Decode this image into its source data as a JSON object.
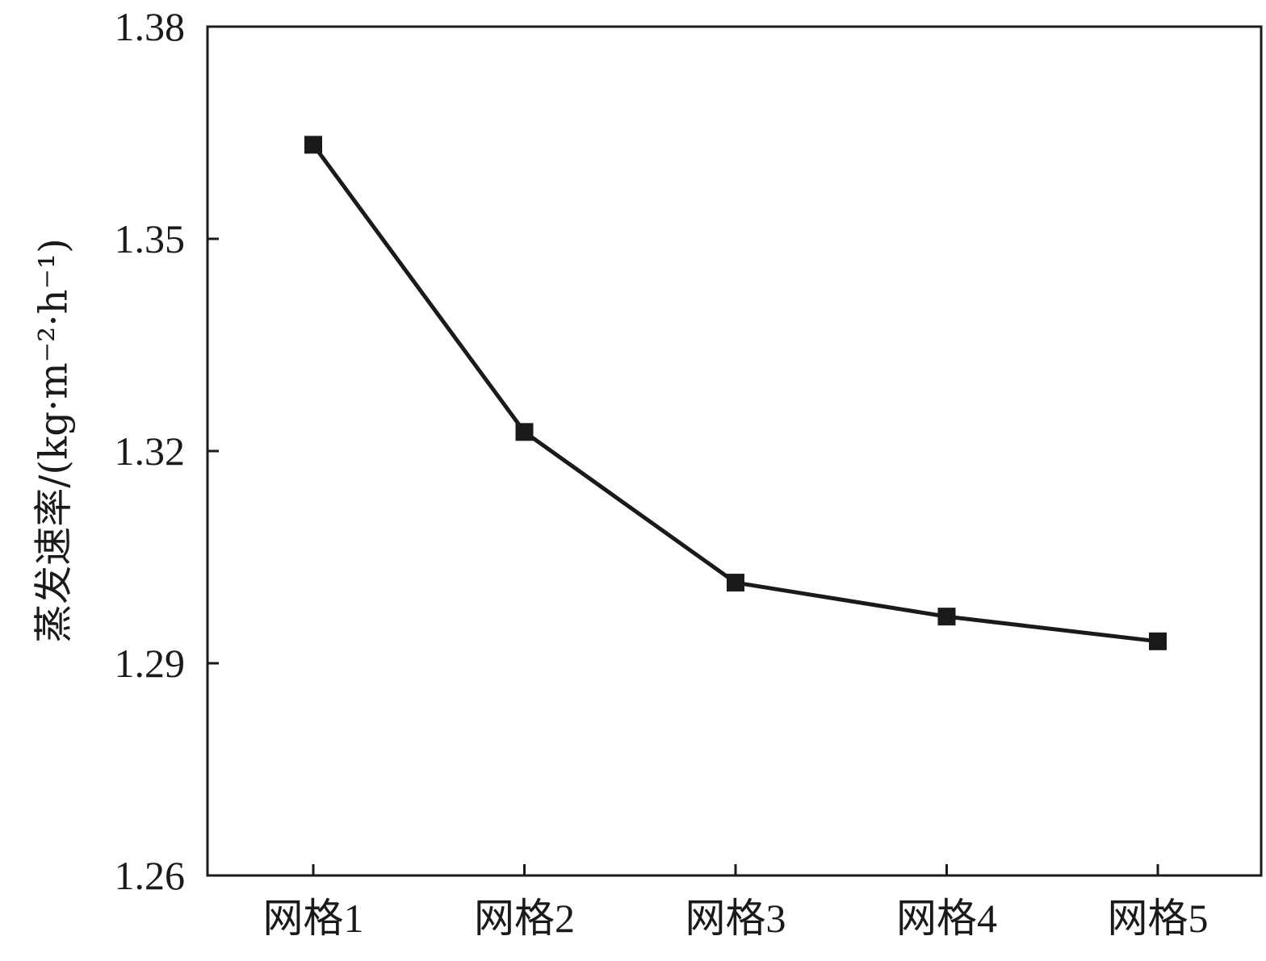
{
  "chart_data": {
    "type": "line",
    "title": "",
    "xlabel": "",
    "ylabel": "蒸发速率/(kg·m⁻²·h⁻¹)",
    "categories": [
      "网格1",
      "网格2",
      "网格3",
      "网格4",
      "网格5"
    ],
    "series": [
      {
        "values": [
          1.3633,
          1.3227,
          1.3014,
          1.2966,
          1.2931
        ],
        "color": "#1a1a1a",
        "marker": "square"
      }
    ],
    "ylim": [
      1.26,
      1.38
    ],
    "yticks": [
      1.26,
      1.29,
      1.32,
      1.35,
      1.38
    ],
    "ytick_labels": [
      "1.26",
      "1.29",
      "1.32",
      "1.35",
      "1.38"
    ],
    "grid": false,
    "legend": "none"
  }
}
